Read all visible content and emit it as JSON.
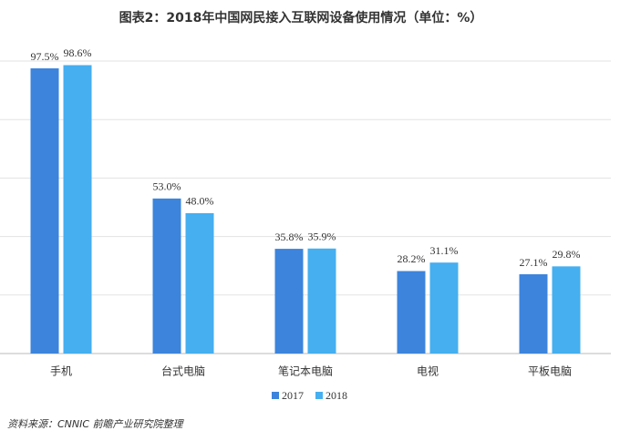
{
  "chart_data": {
    "type": "bar",
    "title": "图表2：2018年中国网民接入互联网设备使用情况（单位：%）",
    "categories": [
      "手机",
      "台式电脑",
      "笔记本电脑",
      "电视",
      "平板电脑"
    ],
    "series": [
      {
        "name": "2017",
        "color": "#3c84dc",
        "values": [
          97.5,
          53.0,
          35.8,
          28.2,
          27.1
        ],
        "value_labels": [
          "97.5%",
          "53.0%",
          "35.8%",
          "28.2%",
          "27.1%"
        ]
      },
      {
        "name": "2018",
        "color": "#45aff0",
        "values": [
          98.6,
          48.0,
          35.9,
          31.1,
          29.8
        ],
        "value_labels": [
          "98.6%",
          "48.0%",
          "35.9%",
          "31.1%",
          "29.8%"
        ]
      }
    ],
    "ylim": [
      0,
      100
    ],
    "yticks": [
      0,
      20,
      40,
      60,
      80,
      100
    ],
    "grid": true,
    "source": "资料来源：CNNIC  前瞻产业研究院整理"
  }
}
